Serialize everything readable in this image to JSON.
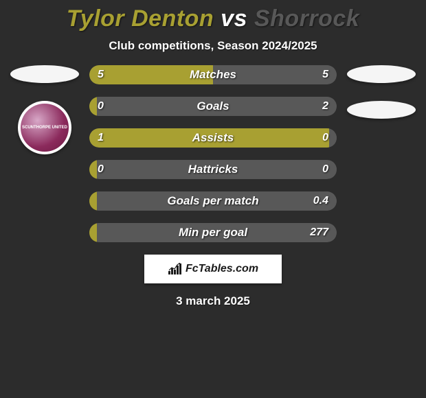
{
  "background_color": "#2c2c2c",
  "title": {
    "player1": "Tylor Denton",
    "vs": "vs",
    "player2": "Shorrock",
    "player1_color": "#a8a032",
    "player2_color": "#585858",
    "fontsize": 34
  },
  "subtitle": "Club competitions, Season 2024/2025",
  "subtitle_fontsize": 17,
  "left_badges": {
    "ellipse_color": "#f5f5f5",
    "club_outer": "#ffffff",
    "club_inner_start": "#d8a8c8",
    "club_inner_end": "#6b1a42",
    "club_text": "SCUNTHORPE UNITED"
  },
  "right_badges": {
    "ellipse_color": "#f5f5f5"
  },
  "bars": {
    "track_color": "#585858",
    "left_fill_color": "#a8a032",
    "right_fill_color": "#585858",
    "height": 28,
    "gap": 18,
    "radius": 14,
    "label_fontsize": 17,
    "value_fontsize": 16,
    "text_color": "#ffffff",
    "rows": [
      {
        "label": "Matches",
        "left": "5",
        "right": "5",
        "left_pct": 50,
        "right_pct": 50
      },
      {
        "label": "Goals",
        "left": "0",
        "right": "2",
        "left_pct": 3,
        "right_pct": 97
      },
      {
        "label": "Assists",
        "left": "1",
        "right": "0",
        "left_pct": 97,
        "right_pct": 3
      },
      {
        "label": "Hattricks",
        "left": "0",
        "right": "0",
        "left_pct": 3,
        "right_pct": 3
      },
      {
        "label": "Goals per match",
        "left": "",
        "right": "0.4",
        "left_pct": 3,
        "right_pct": 97
      },
      {
        "label": "Min per goal",
        "left": "",
        "right": "277",
        "left_pct": 3,
        "right_pct": 97
      }
    ]
  },
  "branding": {
    "text": "FcTables.com",
    "bg": "#ffffff",
    "text_color": "#1a1a1a",
    "icon_color": "#1a1a1a"
  },
  "date": "3 march 2025",
  "date_fontsize": 17
}
